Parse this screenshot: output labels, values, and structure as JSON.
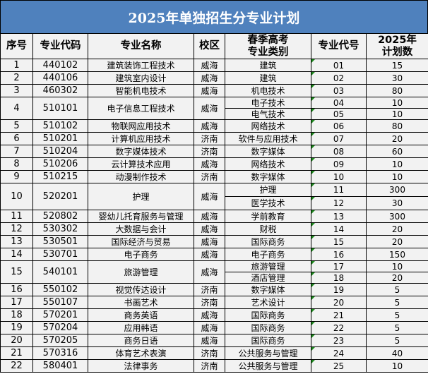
{
  "title": "2025年单独招生分专业计划",
  "headers": [
    "序号",
    "专业代码",
    "专业名称",
    "校区",
    "春季高考\n专业类别",
    "专业代号",
    "2025年\n计划数"
  ],
  "colors": {
    "title_bg": "#4f81bd",
    "cell_bg": "#f2f2f2",
    "marker": "#1e8a1e"
  },
  "rows": [
    {
      "no": "1",
      "code": "440102",
      "name": "建筑装饰工程技术",
      "campus": "威海",
      "subs": [
        {
          "category": "建筑",
          "id": "01",
          "plan": "15"
        }
      ]
    },
    {
      "no": "2",
      "code": "440106",
      "name": "建筑室内设计",
      "campus": "威海",
      "subs": [
        {
          "category": "建筑",
          "id": "02",
          "plan": "30"
        }
      ]
    },
    {
      "no": "3",
      "code": "460302",
      "name": "智能机电技术",
      "campus": "威海",
      "subs": [
        {
          "category": "机电技术",
          "id": "03",
          "plan": "80"
        }
      ]
    },
    {
      "no": "4",
      "code": "510101",
      "name": "电子信息工程技术",
      "campus": "威海",
      "subs": [
        {
          "category": "电子技术",
          "id": "04",
          "plan": "10"
        },
        {
          "category": "电气技术",
          "id": "05",
          "plan": "10"
        }
      ]
    },
    {
      "no": "5",
      "code": "510102",
      "name": "物联网应用技术",
      "campus": "威海",
      "subs": [
        {
          "category": "网络技术",
          "id": "06",
          "plan": "80"
        }
      ]
    },
    {
      "no": "6",
      "code": "510201",
      "name": "计算机应用技术",
      "campus": "济南",
      "subs": [
        {
          "category": "软件与应用技术",
          "id": "07",
          "plan": "20"
        }
      ]
    },
    {
      "no": "7",
      "code": "510204",
      "name": "数字媒体技术",
      "campus": "济南",
      "subs": [
        {
          "category": "数字媒体",
          "id": "08",
          "plan": "60"
        }
      ]
    },
    {
      "no": "8",
      "code": "510206",
      "name": "云计算技术应用",
      "campus": "威海",
      "subs": [
        {
          "category": "网络技术",
          "id": "09",
          "plan": "10"
        }
      ]
    },
    {
      "no": "9",
      "code": "510215",
      "name": "动漫制作技术",
      "campus": "济南",
      "subs": [
        {
          "category": "数字媒体",
          "id": "10",
          "plan": "10"
        }
      ]
    },
    {
      "no": "10",
      "code": "520201",
      "name": "护理",
      "campus": "威海",
      "subs": [
        {
          "category": "护理",
          "id": "11",
          "plan": "300"
        },
        {
          "category": "医学技术",
          "id": "12",
          "plan": "30"
        }
      ]
    },
    {
      "no": "11",
      "code": "520802",
      "name": "婴幼儿托育服务与管理",
      "campus": "威海",
      "subs": [
        {
          "category": "学前教育",
          "id": "13",
          "plan": "300"
        }
      ]
    },
    {
      "no": "12",
      "code": "530302",
      "name": "大数据与会计",
      "campus": "威海",
      "subs": [
        {
          "category": "财税",
          "id": "14",
          "plan": "20"
        }
      ]
    },
    {
      "no": "13",
      "code": "530501",
      "name": "国际经济与贸易",
      "campus": "威海",
      "subs": [
        {
          "category": "国际商务",
          "id": "15",
          "plan": "20"
        }
      ]
    },
    {
      "no": "14",
      "code": "530701",
      "name": "电子商务",
      "campus": "威海",
      "subs": [
        {
          "category": "电子商务",
          "id": "16",
          "plan": "150"
        }
      ]
    },
    {
      "no": "15",
      "code": "540101",
      "name": "旅游管理",
      "campus": "威海",
      "subs": [
        {
          "category": "旅游管理",
          "id": "17",
          "plan": "10"
        },
        {
          "category": "酒店管理",
          "id": "18",
          "plan": "20"
        }
      ]
    },
    {
      "no": "16",
      "code": "550102",
      "name": "视觉传达设计",
      "campus": "济南",
      "subs": [
        {
          "category": "数字媒体",
          "id": "19",
          "plan": "5"
        }
      ]
    },
    {
      "no": "17",
      "code": "550107",
      "name": "书画艺术",
      "campus": "济南",
      "subs": [
        {
          "category": "艺术设计",
          "id": "20",
          "plan": "5"
        }
      ]
    },
    {
      "no": "18",
      "code": "570201",
      "name": "商务英语",
      "campus": "威海",
      "subs": [
        {
          "category": "国际商务",
          "id": "21",
          "plan": "5"
        }
      ]
    },
    {
      "no": "19",
      "code": "570204",
      "name": "应用韩语",
      "campus": "威海",
      "subs": [
        {
          "category": "国际商务",
          "id": "22",
          "plan": "5"
        }
      ]
    },
    {
      "no": "20",
      "code": "570205",
      "name": "商务日语",
      "campus": "威海",
      "subs": [
        {
          "category": "国际商务",
          "id": "23",
          "plan": "5"
        }
      ]
    },
    {
      "no": "21",
      "code": "570316",
      "name": "体育艺术表演",
      "campus": "济南",
      "subs": [
        {
          "category": "公共服务与管理",
          "id": "24",
          "plan": "40"
        }
      ]
    },
    {
      "no": "22",
      "code": "580401",
      "name": "法律事务",
      "campus": "济南",
      "subs": [
        {
          "category": "公共服务与管理",
          "id": "25",
          "plan": "10"
        }
      ]
    }
  ]
}
